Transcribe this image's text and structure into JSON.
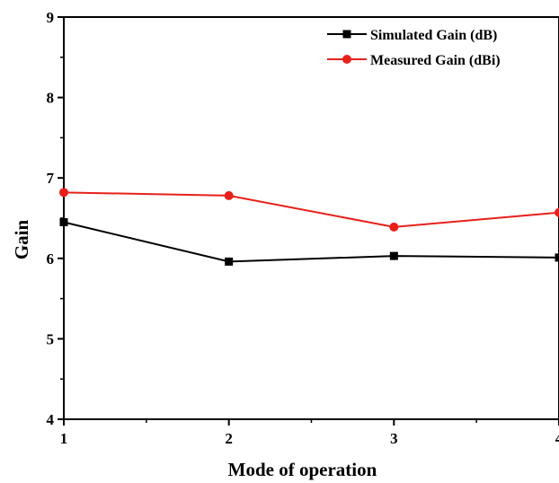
{
  "chart_data": {
    "type": "line",
    "title": "",
    "xlabel": "Mode of operation",
    "ylabel": "Gain",
    "x": [
      1,
      2,
      3,
      4
    ],
    "xlim": [
      1,
      4
    ],
    "ylim": [
      4,
      9
    ],
    "x_ticks": [
      "1",
      "2",
      "3",
      "4"
    ],
    "y_ticks": [
      "4",
      "5",
      "6",
      "7",
      "8",
      "9"
    ],
    "grid": false,
    "legend_position": "top-right",
    "series": [
      {
        "name": "Simulated Gain (dB)",
        "color": "#000000",
        "marker": "square",
        "values": [
          6.45,
          5.96,
          6.03,
          6.01
        ]
      },
      {
        "name": "Measured Gain (dBi)",
        "color": "#e8201a",
        "marker": "circle",
        "values": [
          6.82,
          6.78,
          6.39,
          6.57
        ]
      }
    ]
  }
}
